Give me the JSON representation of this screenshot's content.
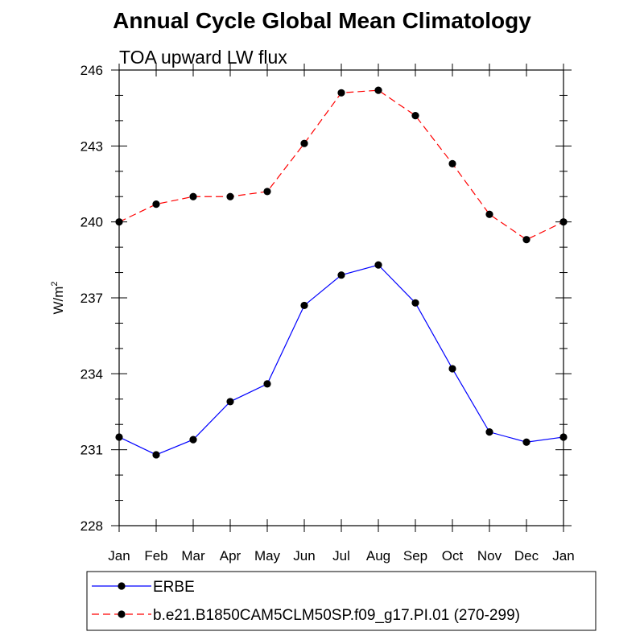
{
  "chart_data": {
    "type": "line",
    "title": "Annual Cycle Global Mean Climatology",
    "subtitle": "TOA upward LW flux",
    "ylabel": "W/m",
    "ylabel_sup": "2",
    "xlabel": "",
    "categories": [
      "Jan",
      "Feb",
      "Mar",
      "Apr",
      "May",
      "Jun",
      "Jul",
      "Aug",
      "Sep",
      "Oct",
      "Nov",
      "Dec",
      "Jan"
    ],
    "ylim": [
      228,
      246
    ],
    "yticks": [
      228,
      231,
      234,
      237,
      240,
      243,
      246
    ],
    "series": [
      {
        "name": "ERBE",
        "color": "#0000ff",
        "dash": "solid",
        "values": [
          231.5,
          230.8,
          231.4,
          232.9,
          233.6,
          236.7,
          237.9,
          238.3,
          236.8,
          234.2,
          231.7,
          231.3,
          231.5
        ]
      },
      {
        "name": "b.e21.B1850CAM5CLM50SP.f09_g17.PI.01 (270-299)",
        "color": "#ff0000",
        "dash": "dashed",
        "values": [
          240.0,
          240.7,
          241.0,
          241.0,
          241.2,
          243.1,
          245.1,
          245.2,
          244.2,
          242.3,
          240.3,
          239.3,
          240.0
        ]
      }
    ],
    "legend_position": "bottom"
  }
}
